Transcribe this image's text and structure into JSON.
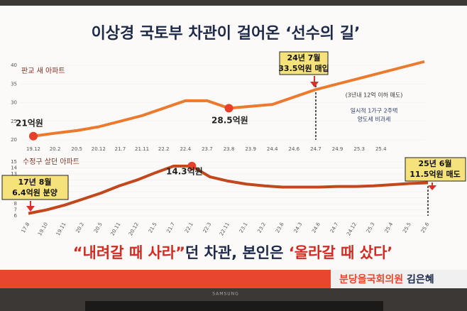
{
  "headline": "이상경 국토부 차관이 걸어온 ‘선수의 길’",
  "caption": {
    "quote": "“내려갈 때 사라”",
    "middle": "던 차관, 본인은 ",
    "highlight": "‘올라갈 때 샀다’"
  },
  "footer": {
    "name": "분당을국회의원",
    "person": "김은혜"
  },
  "brand": "SAMSUNG",
  "chart_data": [
    {
      "type": "line",
      "title": "판교 새 아파트",
      "categories": [
        "19.12",
        "20.2",
        "20.5",
        "20.12",
        "21.7",
        "21.11",
        "22.2",
        "22.4",
        "23.7",
        "23.8",
        "23.9",
        "24.4",
        "24.6",
        "24.7",
        "24.9",
        "25.3",
        "25.4",
        null,
        null
      ],
      "series": [
        {
          "name": "판교 새 아파트",
          "color": "#ec7a2e",
          "values": [
            21,
            21.8,
            22.5,
            23.5,
            25,
            26.5,
            28.5,
            30.5,
            30.5,
            28.5,
            29,
            29.5,
            31.5,
            33.5,
            35,
            36.5,
            38,
            39.5,
            41
          ]
        }
      ],
      "ylim": [
        20,
        40
      ],
      "yticks": [
        20,
        25,
        30,
        35,
        40
      ],
      "grid": true,
      "annotations": [
        "21억원",
        "28.5억원",
        "24년 7월",
        "33.5억원 매입",
        "(3년내 12억 이하 매도)",
        "일시적 1가구 2주택",
        "양도세 비과세"
      ]
    },
    {
      "type": "line",
      "title": "수정구 살던 아파트",
      "categories": [
        "17.8",
        "19.10",
        "19.11",
        "20.2",
        "20.5",
        "20.11",
        "20.12",
        "21.5",
        "21.7",
        "22.1",
        "22.3",
        "22.11",
        "23.1",
        "23.2",
        "23.6",
        "24.3",
        "24.6",
        "24.7",
        "24.12",
        "25.3",
        "25.4",
        "25.5",
        "25.6"
      ],
      "series": [
        {
          "name": "수정구 살던 아파트",
          "color": "#c2471c",
          "values": [
            6.4,
            7,
            7.8,
            8.8,
            9.8,
            11,
            12,
            13.2,
            14.3,
            14.3,
            12.5,
            11.8,
            11.3,
            11,
            10.8,
            10.8,
            10.8,
            10.9,
            10.9,
            11,
            11.2,
            11.4,
            11.5
          ]
        }
      ],
      "ylim": [
        6,
        15
      ],
      "yticks": [
        6,
        7,
        8,
        9,
        10,
        11,
        12,
        13,
        14,
        15
      ],
      "grid": true,
      "annotations": [
        "17년 8월",
        "6.4억원 분양",
        "14.3억원",
        "25년 6월",
        "11.5억원 매도"
      ]
    }
  ]
}
